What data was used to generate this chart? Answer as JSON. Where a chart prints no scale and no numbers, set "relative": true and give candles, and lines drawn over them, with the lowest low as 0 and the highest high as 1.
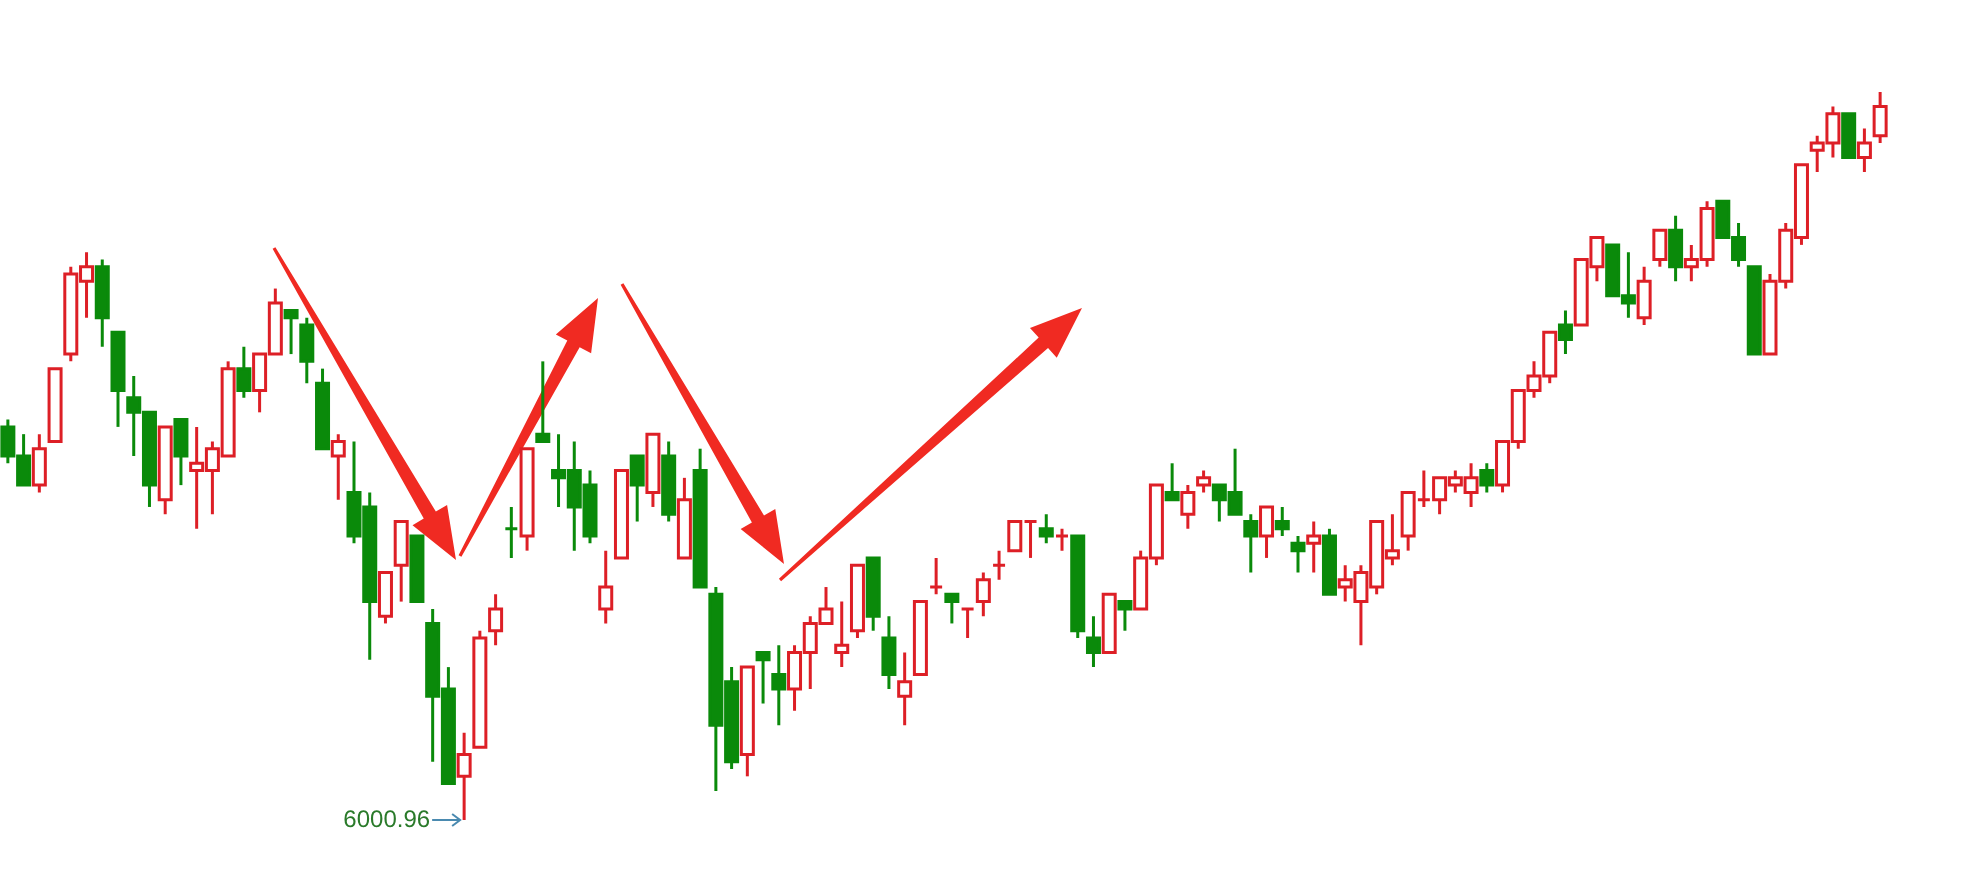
{
  "chart_data": {
    "type": "candlestick",
    "relative": true,
    "categories": [
      null,
      null,
      null,
      null,
      null,
      null,
      null,
      null,
      null,
      null,
      null,
      null,
      null,
      null,
      null,
      null,
      null,
      null,
      null,
      null,
      null,
      null,
      null,
      null,
      null,
      null,
      null,
      null,
      null,
      null,
      null,
      null,
      null,
      null,
      null,
      null,
      null,
      null,
      null,
      null,
      null,
      null,
      null,
      null,
      null,
      null,
      null,
      null,
      null,
      null,
      null,
      null,
      null,
      null,
      null,
      null,
      null,
      null,
      null,
      null,
      null,
      null,
      null,
      null,
      null,
      null,
      null,
      null,
      null,
      null,
      null,
      null,
      null,
      null,
      null,
      null,
      null,
      null,
      null,
      null,
      null,
      null,
      null,
      null,
      null,
      null,
      null,
      null,
      null,
      null,
      null,
      null,
      null,
      null,
      null,
      null,
      null,
      null,
      null,
      null,
      null,
      null,
      null,
      null,
      null,
      null,
      null,
      null,
      null,
      null,
      null,
      null,
      null,
      null,
      null,
      null,
      null,
      null,
      null,
      null
    ],
    "ohlc": [
      [
        0.54,
        0.55,
        0.49,
        0.5
      ],
      [
        0.5,
        0.53,
        0.46,
        0.46
      ],
      [
        0.46,
        0.53,
        0.45,
        0.51
      ],
      [
        0.52,
        0.62,
        0.52,
        0.62
      ],
      [
        0.64,
        0.76,
        0.63,
        0.75
      ],
      [
        0.74,
        0.78,
        0.69,
        0.76
      ],
      [
        0.76,
        0.77,
        0.65,
        0.69
      ],
      [
        0.67,
        0.67,
        0.54,
        0.59
      ],
      [
        0.58,
        0.61,
        0.5,
        0.56
      ],
      [
        0.56,
        0.56,
        0.43,
        0.46
      ],
      [
        0.44,
        0.54,
        0.42,
        0.54
      ],
      [
        0.55,
        0.55,
        0.46,
        0.5
      ],
      [
        0.48,
        0.54,
        0.4,
        0.49
      ],
      [
        0.48,
        0.52,
        0.42,
        0.51
      ],
      [
        0.5,
        0.63,
        0.5,
        0.62
      ],
      [
        0.62,
        0.65,
        0.58,
        0.59
      ],
      [
        0.59,
        0.64,
        0.56,
        0.64
      ],
      [
        0.64,
        0.73,
        0.64,
        0.71
      ],
      [
        0.7,
        0.7,
        0.64,
        0.69
      ],
      [
        0.68,
        0.69,
        0.6,
        0.63
      ],
      [
        0.6,
        0.62,
        0.51,
        0.51
      ],
      [
        0.5,
        0.53,
        0.44,
        0.52
      ],
      [
        0.45,
        0.52,
        0.38,
        0.39
      ],
      [
        0.43,
        0.45,
        0.22,
        0.3
      ],
      [
        0.28,
        0.34,
        0.27,
        0.34
      ],
      [
        0.35,
        0.41,
        0.3,
        0.41
      ],
      [
        0.39,
        0.39,
        0.3,
        0.3
      ],
      [
        0.27,
        0.29,
        0.08,
        0.17
      ],
      [
        0.18,
        0.21,
        0.05,
        0.05
      ],
      [
        0.06,
        0.12,
        0,
        0.09
      ],
      [
        0.1,
        0.26,
        0.1,
        0.25
      ],
      [
        0.26,
        0.31,
        0.24,
        0.29
      ],
      [
        0.4,
        0.43,
        0.36,
        0.4
      ],
      [
        0.39,
        0.51,
        0.37,
        0.51
      ],
      [
        0.53,
        0.63,
        0.52,
        0.52
      ],
      [
        0.48,
        0.53,
        0.43,
        0.47
      ],
      [
        0.48,
        0.52,
        0.37,
        0.43
      ],
      [
        0.46,
        0.48,
        0.38,
        0.39
      ],
      [
        0.29,
        0.37,
        0.27,
        0.32
      ],
      [
        0.36,
        0.48,
        0.36,
        0.48
      ],
      [
        0.5,
        0.5,
        0.41,
        0.46
      ],
      [
        0.45,
        0.53,
        0.43,
        0.53
      ],
      [
        0.5,
        0.52,
        0.41,
        0.42
      ],
      [
        0.36,
        0.47,
        0.36,
        0.44
      ],
      [
        0.48,
        0.51,
        0.32,
        0.32
      ],
      [
        0.31,
        0.32,
        0.04,
        0.13
      ],
      [
        0.19,
        0.21,
        0.07,
        0.08
      ],
      [
        0.09,
        0.21,
        0.06,
        0.21
      ],
      [
        0.23,
        0.23,
        0.16,
        0.22
      ],
      [
        0.2,
        0.24,
        0.13,
        0.18
      ],
      [
        0.18,
        0.24,
        0.15,
        0.23
      ],
      [
        0.23,
        0.28,
        0.18,
        0.27
      ],
      [
        0.27,
        0.32,
        0.27,
        0.29
      ],
      [
        0.23,
        0.3,
        0.21,
        0.24
      ],
      [
        0.26,
        0.35,
        0.25,
        0.35
      ],
      [
        0.36,
        0.36,
        0.26,
        0.28
      ],
      [
        0.25,
        0.28,
        0.18,
        0.2
      ],
      [
        0.17,
        0.23,
        0.13,
        0.19
      ],
      [
        0.2,
        0.3,
        0.2,
        0.3
      ],
      [
        0.32,
        0.36,
        0.31,
        0.32
      ],
      [
        0.31,
        0.31,
        0.27,
        0.3
      ],
      [
        0.29,
        0.29,
        0.25,
        0.29
      ],
      [
        0.3,
        0.34,
        0.28,
        0.33
      ],
      [
        0.35,
        0.37,
        0.33,
        0.35
      ],
      [
        0.37,
        0.41,
        0.37,
        0.41
      ],
      [
        0.41,
        0.41,
        0.36,
        0.41
      ],
      [
        0.4,
        0.42,
        0.38,
        0.39
      ],
      [
        0.39,
        0.4,
        0.37,
        0.39
      ],
      [
        0.39,
        0.39,
        0.25,
        0.26
      ],
      [
        0.25,
        0.28,
        0.21,
        0.23
      ],
      [
        0.23,
        0.31,
        0.23,
        0.31
      ],
      [
        0.3,
        0.3,
        0.26,
        0.29
      ],
      [
        0.29,
        0.37,
        0.29,
        0.36
      ],
      [
        0.36,
        0.46,
        0.35,
        0.46
      ],
      [
        0.45,
        0.49,
        0.44,
        0.44
      ],
      [
        0.42,
        0.46,
        0.4,
        0.45
      ],
      [
        0.46,
        0.48,
        0.45,
        0.47
      ],
      [
        0.46,
        0.46,
        0.41,
        0.44
      ],
      [
        0.45,
        0.51,
        0.42,
        0.42
      ],
      [
        0.41,
        0.42,
        0.34,
        0.39
      ],
      [
        0.39,
        0.43,
        0.36,
        0.43
      ],
      [
        0.41,
        0.43,
        0.39,
        0.4
      ],
      [
        0.38,
        0.39,
        0.34,
        0.37
      ],
      [
        0.38,
        0.41,
        0.34,
        0.39
      ],
      [
        0.39,
        0.4,
        0.31,
        0.31
      ],
      [
        0.32,
        0.35,
        0.3,
        0.33
      ],
      [
        0.3,
        0.35,
        0.24,
        0.34
      ],
      [
        0.32,
        0.41,
        0.31,
        0.41
      ],
      [
        0.36,
        0.42,
        0.35,
        0.37
      ],
      [
        0.39,
        0.45,
        0.37,
        0.45
      ],
      [
        0.44,
        0.48,
        0.43,
        0.44
      ],
      [
        0.44,
        0.47,
        0.42,
        0.47
      ],
      [
        0.46,
        0.48,
        0.45,
        0.47
      ],
      [
        0.45,
        0.49,
        0.43,
        0.47
      ],
      [
        0.48,
        0.49,
        0.45,
        0.46
      ],
      [
        0.46,
        0.52,
        0.45,
        0.52
      ],
      [
        0.52,
        0.59,
        0.51,
        0.59
      ],
      [
        0.59,
        0.63,
        0.58,
        0.61
      ],
      [
        0.61,
        0.67,
        0.6,
        0.67
      ],
      [
        0.68,
        0.7,
        0.64,
        0.66
      ],
      [
        0.68,
        0.77,
        0.68,
        0.77
      ],
      [
        0.76,
        0.8,
        0.74,
        0.8
      ],
      [
        0.79,
        0.79,
        0.72,
        0.72
      ],
      [
        0.72,
        0.78,
        0.69,
        0.71
      ],
      [
        0.69,
        0.76,
        0.68,
        0.74
      ],
      [
        0.77,
        0.81,
        0.76,
        0.81
      ],
      [
        0.81,
        0.83,
        0.74,
        0.76
      ],
      [
        0.76,
        0.79,
        0.74,
        0.77
      ],
      [
        0.77,
        0.85,
        0.76,
        0.84
      ],
      [
        0.85,
        0.85,
        0.8,
        0.8
      ],
      [
        0.8,
        0.82,
        0.76,
        0.77
      ],
      [
        0.76,
        0.76,
        0.64,
        0.64
      ],
      [
        0.64,
        0.75,
        0.64,
        0.74
      ],
      [
        0.74,
        0.82,
        0.73,
        0.81
      ],
      [
        0.8,
        0.9,
        0.79,
        0.9
      ],
      [
        0.92,
        0.94,
        0.89,
        0.93
      ],
      [
        0.93,
        0.98,
        0.91,
        0.97
      ],
      [
        0.97,
        0.97,
        0.91,
        0.91
      ],
      [
        0.91,
        0.95,
        0.89,
        0.93
      ],
      [
        0.94,
        1,
        0.93,
        0.98
      ]
    ],
    "colors": [
      "#0a8a0a",
      "#0a8a0a",
      "#dd1f26",
      "#dd1f26",
      "#dd1f26",
      "#dd1f26",
      "#0a8a0a",
      "#0a8a0a",
      "#0a8a0a",
      "#0a8a0a",
      "#dd1f26",
      "#0a8a0a",
      "#dd1f26",
      "#dd1f26",
      "#dd1f26",
      "#0a8a0a",
      "#dd1f26",
      "#dd1f26",
      "#0a8a0a",
      "#0a8a0a",
      "#0a8a0a",
      "#dd1f26",
      "#0a8a0a",
      "#0a8a0a",
      "#dd1f26",
      "#dd1f26",
      "#0a8a0a",
      "#0a8a0a",
      "#0a8a0a",
      "#dd1f26",
      "#dd1f26",
      "#dd1f26",
      "#0a8a0a",
      "#dd1f26",
      "#0a8a0a",
      "#0a8a0a",
      "#0a8a0a",
      "#0a8a0a",
      "#dd1f26",
      "#dd1f26",
      "#0a8a0a",
      "#dd1f26",
      "#0a8a0a",
      "#dd1f26",
      "#0a8a0a",
      "#0a8a0a",
      "#0a8a0a",
      "#dd1f26",
      "#0a8a0a",
      "#0a8a0a",
      "#dd1f26",
      "#dd1f26",
      "#dd1f26",
      "#dd1f26",
      "#dd1f26",
      "#0a8a0a",
      "#0a8a0a",
      "#dd1f26",
      "#dd1f26",
      "#dd1f26",
      "#0a8a0a",
      "#dd1f26",
      "#dd1f26",
      "#dd1f26",
      "#dd1f26",
      "#dd1f26",
      "#0a8a0a",
      "#dd1f26",
      "#0a8a0a",
      "#0a8a0a",
      "#dd1f26",
      "#0a8a0a",
      "#dd1f26",
      "#dd1f26",
      "#0a8a0a",
      "#dd1f26",
      "#dd1f26",
      "#0a8a0a",
      "#0a8a0a",
      "#0a8a0a",
      "#dd1f26",
      "#0a8a0a",
      "#0a8a0a",
      "#dd1f26",
      "#0a8a0a",
      "#dd1f26",
      "#dd1f26",
      "#dd1f26",
      "#dd1f26",
      "#dd1f26",
      "#dd1f26",
      "#dd1f26",
      "#dd1f26",
      "#dd1f26",
      "#0a8a0a",
      "#dd1f26",
      "#dd1f26",
      "#dd1f26",
      "#dd1f26",
      "#0a8a0a",
      "#dd1f26",
      "#dd1f26",
      "#0a8a0a",
      "#0a8a0a",
      "#dd1f26",
      "#dd1f26",
      "#0a8a0a",
      "#dd1f26",
      "#dd1f26",
      "#0a8a0a",
      "#0a8a0a",
      "#0a8a0a",
      "#dd1f26",
      "#dd1f26",
      "#dd1f26",
      "#dd1f26",
      "#dd1f26",
      "#0a8a0a",
      "#dd1f26",
      "#dd1f26"
    ],
    "annotations": [
      "6000.96"
    ]
  }
}
